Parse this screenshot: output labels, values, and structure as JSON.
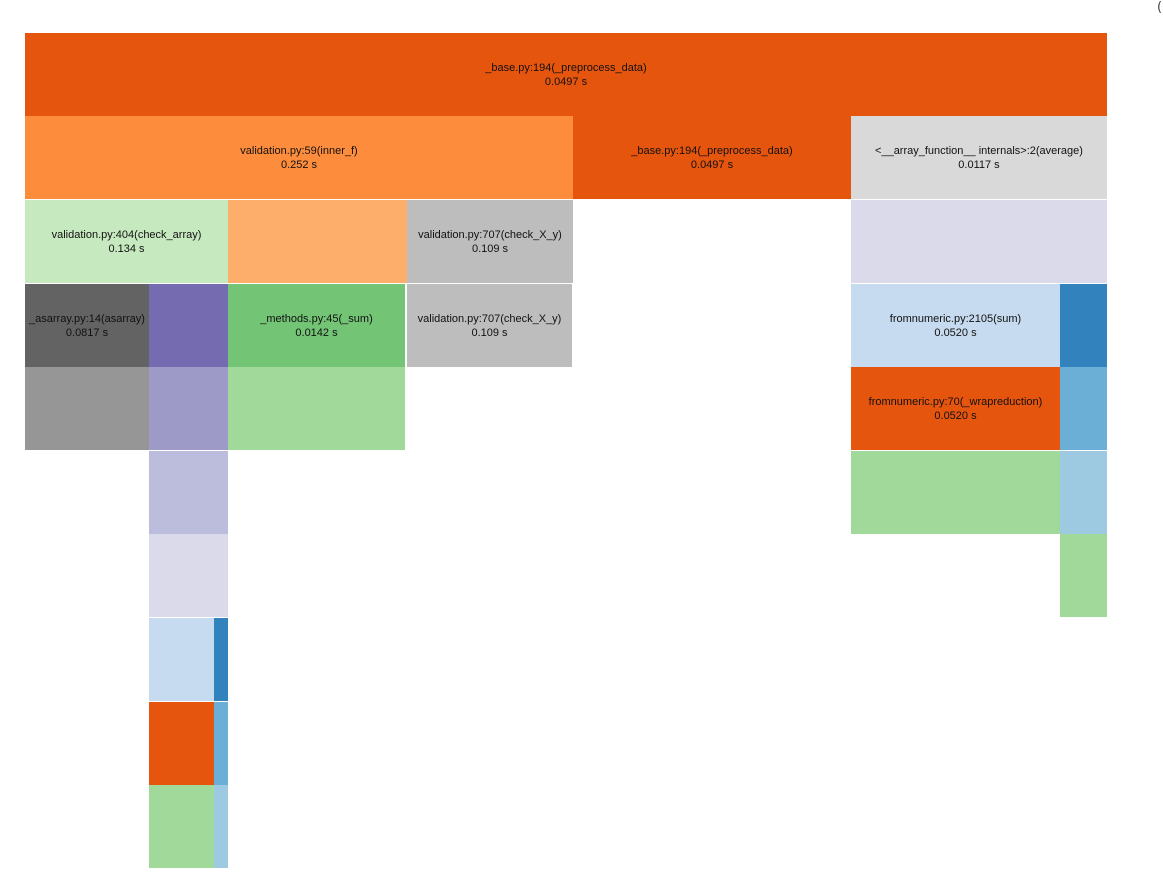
{
  "chart_data": {
    "type": "icicle",
    "title": "",
    "frames": [
      {
        "name": "_base.py:194(_preprocess_data)",
        "time": "0.0497 s",
        "color": "#e6550d"
      },
      {
        "name": "validation.py:59(inner_f)",
        "time": "0.252 s",
        "color": "#fd8d3c"
      },
      {
        "name": "_base.py:194(_preprocess_data)",
        "time": "0.0497 s",
        "color": "#e6550d"
      },
      {
        "name": "<__array_function__ internals>:2(average)",
        "time": "0.0117 s",
        "color": "#d9d9d9"
      },
      {
        "name": "validation.py:404(check_array)",
        "time": "0.134 s",
        "color": "#c7e9c0"
      },
      {
        "name": "",
        "time": "",
        "color": "#fdae6b"
      },
      {
        "name": "validation.py:707(check_X_y)",
        "time": "0.109 s",
        "color": "#bdbdbd"
      },
      {
        "name": "",
        "time": "",
        "color": "#dadaeb"
      },
      {
        "name": "_asarray.py:14(asarray)",
        "time": "0.0817 s",
        "color": "#636363"
      },
      {
        "name": "",
        "time": "",
        "color": "#756bb1"
      },
      {
        "name": "_methods.py:45(_sum)",
        "time": "0.0142 s",
        "color": "#74c476"
      },
      {
        "name": "validation.py:707(check_X_y)",
        "time": "0.109 s",
        "color": "#bdbdbd"
      },
      {
        "name": "fromnumeric.py:2105(sum)",
        "time": "0.0520 s",
        "color": "#c6dbef"
      },
      {
        "name": "",
        "time": "",
        "color": "#3182bd"
      },
      {
        "name": "",
        "time": "",
        "color": "#969696"
      },
      {
        "name": "",
        "time": "",
        "color": "#9e9ac8"
      },
      {
        "name": "",
        "time": "",
        "color": "#a1d99b"
      },
      {
        "name": "fromnumeric.py:70(_wrapreduction)",
        "time": "0.0520 s",
        "color": "#e6550d"
      },
      {
        "name": "",
        "time": "",
        "color": "#6baed6"
      },
      {
        "name": "",
        "time": "",
        "color": "#bcbddc"
      },
      {
        "name": "",
        "time": "",
        "color": "#a1d99b"
      },
      {
        "name": "",
        "time": "",
        "color": "#9ecae1"
      },
      {
        "name": "",
        "time": "",
        "color": "#dadaeb"
      },
      {
        "name": "",
        "time": "",
        "color": "#a1d99b"
      },
      {
        "name": "",
        "time": "",
        "color": "#c6dbef"
      },
      {
        "name": "",
        "time": "",
        "color": "#3182bd"
      },
      {
        "name": "",
        "time": "",
        "color": "#e6550d"
      },
      {
        "name": "",
        "time": "",
        "color": "#6baed6"
      },
      {
        "name": "",
        "time": "",
        "color": "#a1d99b"
      },
      {
        "name": "",
        "time": "",
        "color": "#9ecae1"
      }
    ]
  },
  "corner_glyph": "("
}
